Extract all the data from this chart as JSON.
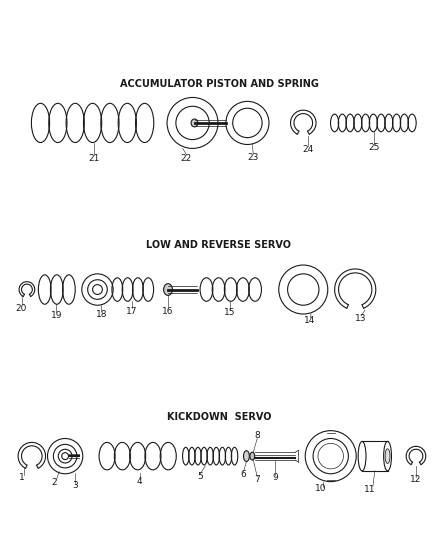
{
  "bg_color": "#ffffff",
  "line_color": "#1a1a1a",
  "section1_label": "KICKDOWN  SERVO",
  "section2_label": "LOW AND REVERSE SERVO",
  "section3_label": "ACCUMULATOR PISTON AND SPRING",
  "label_fontsize": 7,
  "number_fontsize": 6.5,
  "fig_width": 4.38,
  "fig_height": 5.33,
  "dpi": 100
}
